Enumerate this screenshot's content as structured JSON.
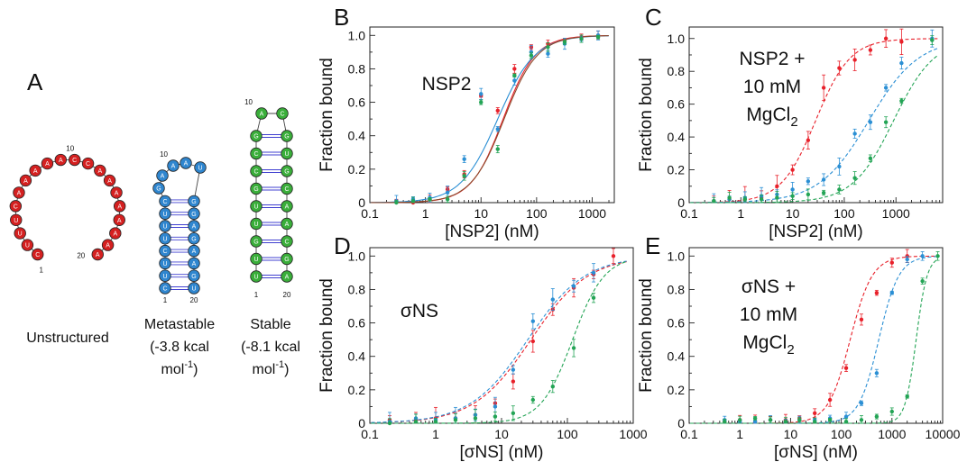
{
  "figure": {
    "panel_labels": {
      "A": "A",
      "B": "B",
      "C": "C",
      "D": "D",
      "E": "E"
    },
    "colors": {
      "red": "#e8202a",
      "blue": "#2b8fd4",
      "green": "#23a455",
      "brown": "#8b4a2b",
      "node_red": "#d42020",
      "node_blue": "#2f86cf",
      "node_green": "#3aae3a",
      "pair_line": "#4040d0"
    }
  },
  "structures": [
    {
      "label": "Unstructured",
      "sublabel_1": "",
      "sublabel_2": "",
      "color": "#d42020",
      "sequence": [
        "C",
        "U",
        "U",
        "U",
        "C",
        "A",
        "A",
        "A",
        "A",
        "A",
        "C",
        "C",
        "A",
        "A",
        "A",
        "A",
        "A",
        "A",
        "A",
        "A"
      ],
      "index_labels": {
        "start": "1",
        "mid": "10",
        "end": "20"
      }
    },
    {
      "label": "Metastable",
      "sublabel_1": "(-3.8 kcal",
      "sublabel_2": "mol",
      "sup": "-1",
      "tail": ")",
      "color": "#2f86cf",
      "left_stem": [
        "C",
        "U",
        "U",
        "C",
        "U",
        "U",
        "U",
        "C"
      ],
      "loop": [
        "G",
        "A",
        "A",
        "A",
        "U"
      ],
      "right_stem": [
        "U",
        "G",
        "A",
        "A",
        "G",
        "A",
        "G",
        "G"
      ],
      "index_labels": {
        "start": "1",
        "mid": "10",
        "end": "20"
      }
    },
    {
      "label": "Stable",
      "sublabel_1": "(-8.1 kcal",
      "sublabel_2": "mol",
      "sup": "-1",
      "tail": ")",
      "color": "#3aae3a",
      "left_stem": [
        "U",
        "U",
        "G",
        "U",
        "U",
        "G",
        "C",
        "C",
        "G"
      ],
      "loop": [
        "A",
        "C"
      ],
      "right_stem": [
        "A",
        "G",
        "C",
        "A",
        "A",
        "C",
        "G",
        "U",
        "G"
      ],
      "index_labels": {
        "start": "1",
        "mid": "10",
        "end": "20"
      }
    }
  ],
  "chart_data": [
    {
      "panel": "B",
      "type": "scatter",
      "annotation": "NSP2",
      "annotation_lines": [
        "NSP2"
      ],
      "xlabel": "[NSP2] (nM)",
      "ylabel": "Fraction bound",
      "xscale": "log",
      "xlim": [
        0.1,
        2500
      ],
      "ylim": [
        0,
        1.05
      ],
      "xticks": [
        "0.1",
        "1",
        "10",
        "100",
        "1000"
      ],
      "yticks": [
        "0",
        "0.2",
        "0.4",
        "0.6",
        "0.8",
        "1.0"
      ],
      "fit_style": "solid",
      "series": [
        {
          "color": "#e8202a",
          "points": [
            [
              0.3,
              0.01
            ],
            [
              0.6,
              0.0
            ],
            [
              1.2,
              0.02
            ],
            [
              2.5,
              0.08
            ],
            [
              5,
              0.17
            ],
            [
              10,
              0.64
            ],
            [
              20,
              0.55
            ],
            [
              40,
              0.8
            ],
            [
              80,
              0.93
            ],
            [
              160,
              0.95
            ],
            [
              320,
              0.97
            ],
            [
              640,
              0.99
            ],
            [
              1280,
              1.0
            ]
          ],
          "err": 0.02,
          "fit": {
            "kd": 25,
            "n": 1.5
          },
          "fit_color": "#e8202a"
        },
        {
          "color": "#2b8fd4",
          "points": [
            [
              0.3,
              0.01
            ],
            [
              0.6,
              0.02
            ],
            [
              1.2,
              0.03
            ],
            [
              2.5,
              0.06
            ],
            [
              5,
              0.26
            ],
            [
              10,
              0.65
            ],
            [
              20,
              0.44
            ],
            [
              40,
              0.73
            ],
            [
              80,
              0.9
            ],
            [
              160,
              0.89
            ],
            [
              320,
              0.95
            ],
            [
              640,
              0.98
            ],
            [
              1280,
              1.0
            ]
          ],
          "err": 0.03,
          "fit": {
            "kd": 20,
            "n": 1.3
          },
          "fit_color": "#2b8fd4"
        },
        {
          "color": "#23a455",
          "points": [
            [
              0.3,
              0.0
            ],
            [
              0.6,
              0.01
            ],
            [
              1.2,
              0.02
            ],
            [
              2.5,
              0.02
            ],
            [
              5,
              0.16
            ],
            [
              10,
              0.6
            ],
            [
              20,
              0.32
            ],
            [
              40,
              0.76
            ],
            [
              80,
              0.88
            ],
            [
              160,
              0.93
            ],
            [
              320,
              0.96
            ],
            [
              640,
              0.98
            ],
            [
              1280,
              0.99
            ]
          ],
          "err": 0.02,
          "fit": {
            "kd": 26,
            "n": 1.45
          },
          "fit_color": "#8b4a2b"
        }
      ]
    },
    {
      "panel": "C",
      "type": "scatter",
      "annotation_lines": [
        "NSP2 +",
        "10 mM",
        "MgCl"
      ],
      "annotation_sub": "2",
      "xlabel": "[NSP2] (nM)",
      "ylabel": "Fraction bound",
      "xscale": "log",
      "xlim": [
        0.1,
        8000
      ],
      "ylim": [
        0,
        1.07
      ],
      "xticks": [
        "0.1",
        "1",
        "10",
        "100",
        "1000"
      ],
      "yticks": [
        "0",
        "0.2",
        "0.4",
        "0.6",
        "0.8",
        "1.0"
      ],
      "fit_style": "dashed",
      "series": [
        {
          "color": "#e8202a",
          "points": [
            [
              0.3,
              0.01
            ],
            [
              0.6,
              0.02
            ],
            [
              1.2,
              0.02
            ],
            [
              2.5,
              0.03
            ],
            [
              5,
              0.1
            ],
            [
              10,
              0.2
            ],
            [
              20,
              0.38
            ],
            [
              40,
              0.7
            ],
            [
              80,
              0.82
            ],
            [
              160,
              0.87
            ],
            [
              320,
              0.93
            ],
            [
              640,
              1.0
            ],
            [
              1280,
              0.98
            ]
          ],
          "err": 0.06,
          "fit": {
            "kd": 28,
            "n": 1.3
          },
          "fit_color": "#e8202a"
        },
        {
          "color": "#2b8fd4",
          "points": [
            [
              0.3,
              0.01
            ],
            [
              0.6,
              0.02
            ],
            [
              1.2,
              0.03
            ],
            [
              2.5,
              0.04
            ],
            [
              5,
              0.05
            ],
            [
              10,
              0.08
            ],
            [
              20,
              0.13
            ],
            [
              40,
              0.14
            ],
            [
              80,
              0.22
            ],
            [
              160,
              0.42
            ],
            [
              320,
              0.49
            ],
            [
              640,
              0.7
            ],
            [
              1280,
              0.85
            ],
            [
              5000,
              1.0
            ]
          ],
          "err": 0.04,
          "fit": {
            "kd": 300,
            "n": 0.9
          },
          "fit_color": "#2b8fd4"
        },
        {
          "color": "#23a455",
          "points": [
            [
              0.3,
              0.01
            ],
            [
              0.6,
              0.03
            ],
            [
              1.2,
              0.02
            ],
            [
              2.5,
              0.02
            ],
            [
              5,
              0.03
            ],
            [
              10,
              0.04
            ],
            [
              20,
              0.05
            ],
            [
              40,
              0.06
            ],
            [
              80,
              0.08
            ],
            [
              160,
              0.15
            ],
            [
              320,
              0.27
            ],
            [
              640,
              0.49
            ],
            [
              1280,
              0.62
            ],
            [
              5000,
              0.99
            ]
          ],
          "err": 0.03,
          "fit": {
            "kd": 900,
            "n": 1.1
          },
          "fit_color": "#23a455"
        }
      ]
    },
    {
      "panel": "D",
      "type": "scatter",
      "annotation_lines": [
        "σNS"
      ],
      "xlabel": "[σNS] (nM)",
      "ylabel": "Fraction bound",
      "xscale": "log",
      "xlim": [
        0.1,
        1000
      ],
      "ylim": [
        0,
        1.05
      ],
      "xticks": [
        "0.1",
        "1",
        "10",
        "100",
        "1000"
      ],
      "yticks": [
        "0",
        "0.2",
        "0.4",
        "0.6",
        "0.8",
        "1.0"
      ],
      "fit_style": "dashed",
      "series": [
        {
          "color": "#e8202a",
          "points": [
            [
              0.2,
              0.02
            ],
            [
              0.5,
              0.02
            ],
            [
              1,
              0.03
            ],
            [
              2,
              0.03
            ],
            [
              4,
              0.05
            ],
            [
              8,
              0.12
            ],
            [
              15,
              0.25
            ],
            [
              30,
              0.49
            ],
            [
              60,
              0.68
            ],
            [
              125,
              0.81
            ],
            [
              250,
              0.89
            ],
            [
              500,
              1.0
            ]
          ],
          "err": 0.05,
          "fit": {
            "kd": 28,
            "n": 1.0
          },
          "fit_color": "#e8202a"
        },
        {
          "color": "#2b8fd4",
          "points": [
            [
              0.2,
              0.01
            ],
            [
              0.5,
              0.03
            ],
            [
              1,
              0.02
            ],
            [
              2,
              0.03
            ],
            [
              4,
              0.05
            ],
            [
              8,
              0.1
            ],
            [
              15,
              0.32
            ],
            [
              30,
              0.61
            ],
            [
              60,
              0.74
            ],
            [
              125,
              0.82
            ],
            [
              250,
              0.9
            ]
          ],
          "err": 0.05,
          "fit": {
            "kd": 25,
            "n": 1.0
          },
          "fit_color": "#2b8fd4"
        },
        {
          "color": "#23a455",
          "points": [
            [
              0.2,
              0.0
            ],
            [
              0.5,
              0.01
            ],
            [
              1,
              0.01
            ],
            [
              2,
              0.02
            ],
            [
              4,
              0.03
            ],
            [
              8,
              0.04
            ],
            [
              15,
              0.06
            ],
            [
              30,
              0.14
            ],
            [
              60,
              0.22
            ],
            [
              125,
              0.45
            ],
            [
              250,
              0.75
            ]
          ],
          "err": 0.04,
          "fit": {
            "kd": 120,
            "n": 1.8
          },
          "fit_color": "#23a455"
        }
      ]
    },
    {
      "panel": "E",
      "type": "scatter",
      "annotation_lines": [
        "σNS +",
        "10 mM",
        "MgCl"
      ],
      "annotation_sub": "2",
      "xlabel": "[σNS] (nM)",
      "ylabel": "Fraction bound",
      "xscale": "log",
      "xlim": [
        0.1,
        10000
      ],
      "ylim": [
        0,
        1.05
      ],
      "xticks": [
        "0.1",
        "1",
        "10",
        "100",
        "1000",
        "10000"
      ],
      "yticks": [
        "0",
        "0.2",
        "0.4",
        "0.6",
        "0.8",
        "1.0"
      ],
      "fit_style": "dashed",
      "series": [
        {
          "color": "#e8202a",
          "points": [
            [
              0.5,
              0.01
            ],
            [
              1,
              0.02
            ],
            [
              2,
              0.01
            ],
            [
              4,
              0.02
            ],
            [
              8,
              0.02
            ],
            [
              15,
              0.03
            ],
            [
              30,
              0.06
            ],
            [
              60,
              0.14
            ],
            [
              125,
              0.33
            ],
            [
              250,
              0.62
            ],
            [
              500,
              0.78
            ],
            [
              1000,
              0.96
            ],
            [
              2000,
              1.0
            ]
          ],
          "err": 0.03,
          "fit": {
            "kd": 150,
            "n": 2.0
          },
          "fit_color": "#e8202a"
        },
        {
          "color": "#2b8fd4",
          "points": [
            [
              0.5,
              0.02
            ],
            [
              1,
              0.01
            ],
            [
              2,
              0.01
            ],
            [
              4,
              0.02
            ],
            [
              8,
              0.01
            ],
            [
              15,
              0.02
            ],
            [
              30,
              0.02
            ],
            [
              60,
              0.03
            ],
            [
              125,
              0.04
            ],
            [
              250,
              0.12
            ],
            [
              500,
              0.3
            ],
            [
              1000,
              0.78
            ],
            [
              2000,
              0.98
            ],
            [
              4000,
              1.0
            ]
          ],
          "err": 0.02,
          "fit": {
            "kd": 550,
            "n": 2.2
          },
          "fit_color": "#2b8fd4"
        },
        {
          "color": "#23a455",
          "points": [
            [
              0.5,
              0.01
            ],
            [
              1,
              0.02
            ],
            [
              2,
              0.03
            ],
            [
              4,
              0.02
            ],
            [
              8,
              0.01
            ],
            [
              15,
              0.02
            ],
            [
              30,
              0.01
            ],
            [
              60,
              0.02
            ],
            [
              125,
              0.01
            ],
            [
              250,
              0.02
            ],
            [
              500,
              0.04
            ],
            [
              1000,
              0.07
            ],
            [
              2000,
              0.16
            ],
            [
              4000,
              0.85
            ],
            [
              8000,
              1.0
            ]
          ],
          "err": 0.02,
          "fit": {
            "kd": 3000,
            "n": 4.0
          },
          "fit_color": "#23a455"
        }
      ]
    }
  ]
}
